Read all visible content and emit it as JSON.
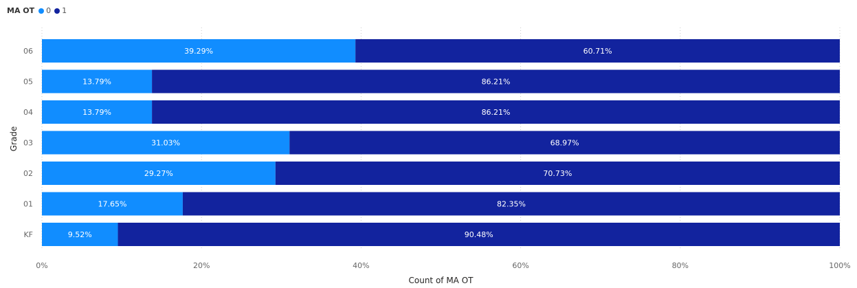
{
  "legend": {
    "title": "MA OT",
    "items": [
      {
        "label": "0",
        "color": "#118DFF"
      },
      {
        "label": "1",
        "color": "#12239E"
      }
    ]
  },
  "chart_data": {
    "type": "bar",
    "orientation": "horizontal",
    "stacked": "100%",
    "xlabel": "Count of MA OT",
    "ylabel": "Grade",
    "xlim": [
      0,
      100
    ],
    "x_ticks": [
      "0%",
      "20%",
      "40%",
      "60%",
      "80%",
      "100%"
    ],
    "categories": [
      "06",
      "05",
      "04",
      "03",
      "02",
      "01",
      "KF"
    ],
    "series": [
      {
        "name": "0",
        "color": "#118DFF",
        "values": [
          39.29,
          13.79,
          13.79,
          31.03,
          29.27,
          17.65,
          9.52
        ],
        "labels": [
          "39.29%",
          "13.79%",
          "13.79%",
          "31.03%",
          "29.27%",
          "17.65%",
          "9.52%"
        ]
      },
      {
        "name": "1",
        "color": "#12239E",
        "values": [
          60.71,
          86.21,
          86.21,
          68.97,
          70.73,
          82.35,
          90.48
        ],
        "labels": [
          "60.71%",
          "86.21%",
          "86.21%",
          "68.97%",
          "70.73%",
          "82.35%",
          "90.48%"
        ]
      }
    ],
    "grid": true,
    "legend_position": "top-left"
  }
}
